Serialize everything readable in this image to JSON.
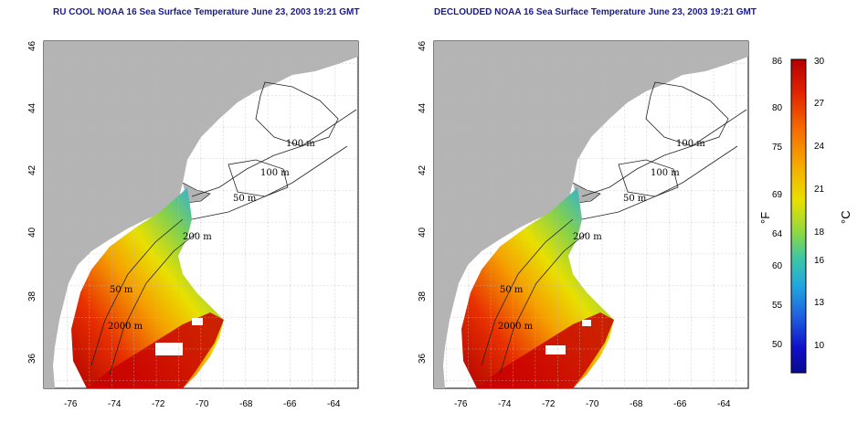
{
  "titles": {
    "left": "RU COOL NOAA 16 Sea Surface Temperature June 23, 2003 19:21 GMT",
    "right": "DECLOUDED NOAA 16 Sea Surface Temperature June 23, 2003 19:21 GMT"
  },
  "axes": {
    "lon_ticks": [
      "-76",
      "-74",
      "-72",
      "-70",
      "-68",
      "-66",
      "-64"
    ],
    "lat_ticks": [
      "36",
      "38",
      "40",
      "42",
      "44",
      "46"
    ]
  },
  "contour_labels": [
    "100 m",
    "100 m",
    "50 m",
    "200 m",
    "50 m",
    "2000 m"
  ],
  "colorbar": {
    "f_label": "°F",
    "c_label": "°C",
    "f_ticks": [
      "86",
      "80",
      "75",
      "69",
      "64",
      "60",
      "55",
      "50"
    ],
    "c_ticks": [
      "30",
      "27",
      "24",
      "21",
      "18",
      "16",
      "13",
      "10"
    ],
    "colors": [
      "#b30000",
      "#d91a00",
      "#f25a00",
      "#f59a00",
      "#f5d000",
      "#c8e000",
      "#7fd040",
      "#40c0a0",
      "#20a0e0",
      "#2060e0",
      "#1010c0",
      "#0a0a90"
    ]
  }
}
